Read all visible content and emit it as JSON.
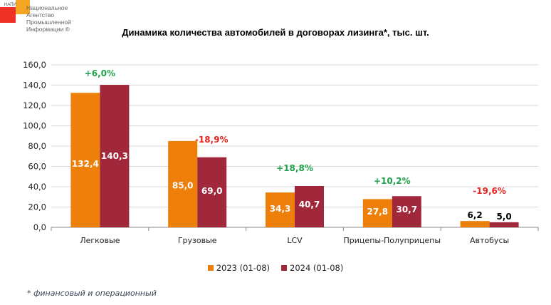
{
  "logo": {
    "abbr": "НАПИ",
    "lines": [
      "Национальное",
      "Агентство",
      "Промышленной",
      "Информации ®"
    ]
  },
  "chart_data": {
    "type": "bar",
    "title": "Динамика количества автомобилей в договорах лизинга*, тыс. шт.",
    "xlabel": "",
    "ylabel": "",
    "ylim": [
      0,
      160
    ],
    "yticks": [
      "0,0",
      "20,0",
      "40,0",
      "60,0",
      "80,0",
      "100,0",
      "120,0",
      "140,0",
      "160,0"
    ],
    "grid": true,
    "legend_position": "bottom",
    "categories": [
      "Легковые",
      "Грузовые",
      "LCV",
      "Прицепы-Полуприцепы",
      "Автобусы"
    ],
    "series": [
      {
        "name": "2023 (01-08)",
        "color": "#EE7F0B",
        "values": [
          132.4,
          85.0,
          34.3,
          27.8,
          6.2
        ],
        "labels": [
          "132,4",
          "85,0",
          "34,3",
          "27,8",
          "6,2"
        ]
      },
      {
        "name": "2024 (01-08)",
        "color": "#A0283A",
        "values": [
          140.3,
          69.0,
          40.7,
          30.7,
          5.0
        ],
        "labels": [
          "140,3",
          "69,0",
          "40,7",
          "30,7",
          "5,0"
        ]
      }
    ],
    "annotations": [
      {
        "text": "+6,0%",
        "category": "Легковые",
        "color": "#1FA34A"
      },
      {
        "text": "-18,9%",
        "category": "Грузовые",
        "color": "#E8231F"
      },
      {
        "text": "+18,8%",
        "category": "LCV",
        "color": "#1FA34A"
      },
      {
        "text": "+10,2%",
        "category": "Прицепы-Полуприцепы",
        "color": "#1FA34A"
      },
      {
        "text": "-19,6%",
        "category": "Автобусы",
        "color": "#E8231F"
      }
    ],
    "footnote": "* финансовый и операционный"
  }
}
